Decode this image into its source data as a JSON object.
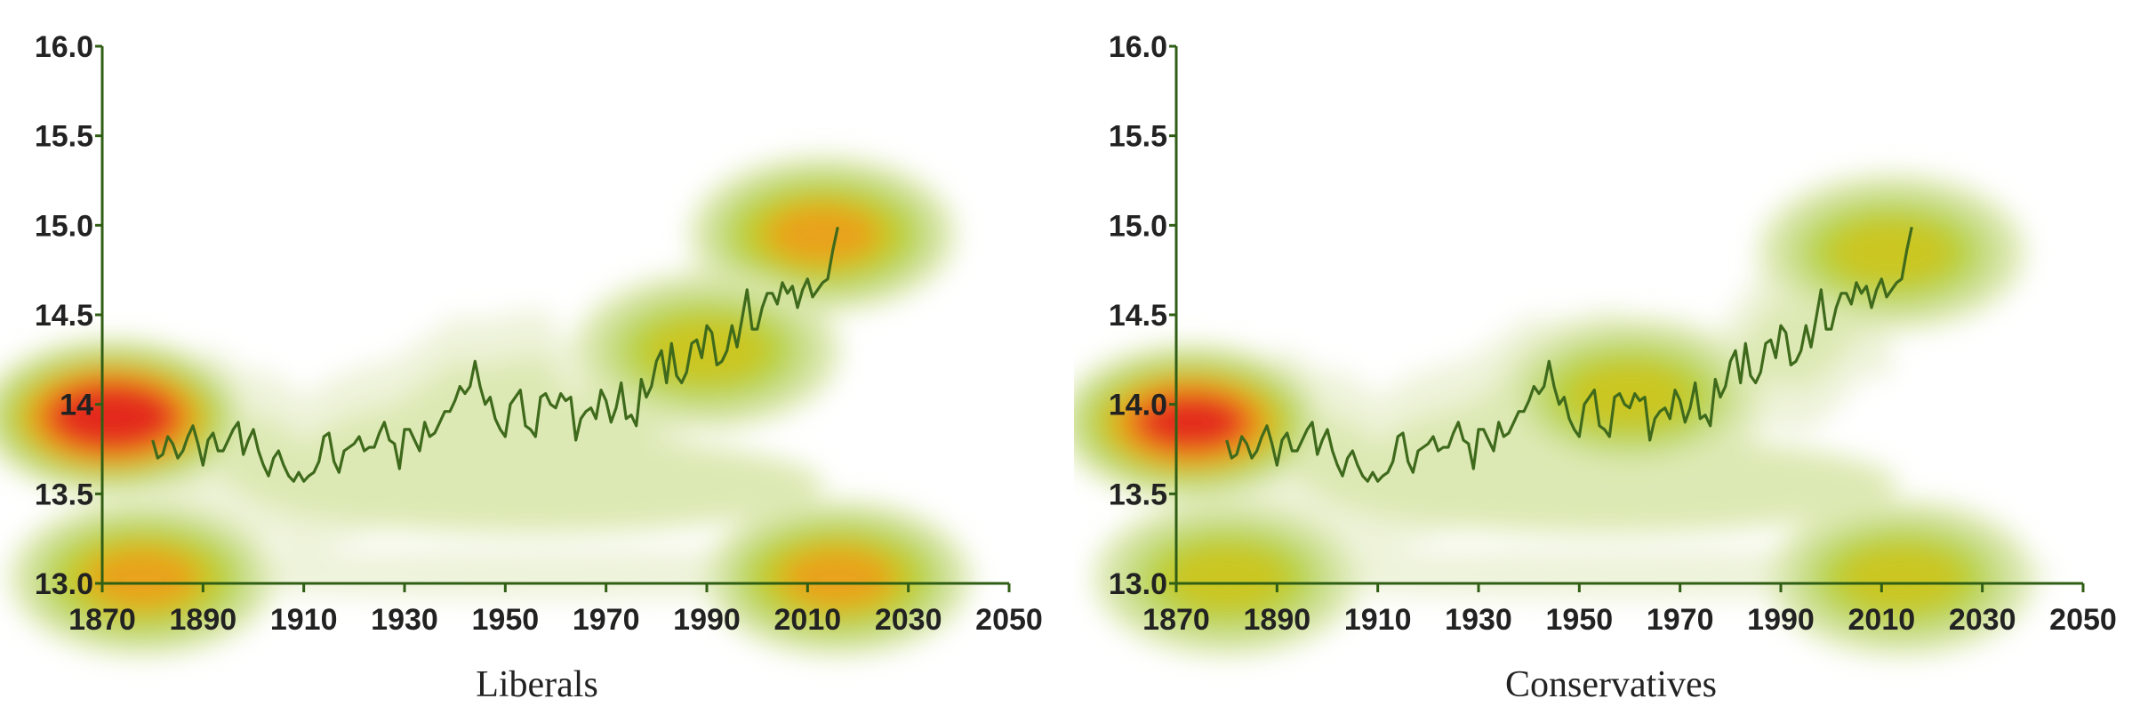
{
  "colors": {
    "axis": "#2f5e14",
    "line": "#3f6a1c",
    "density": [
      "#eef3da",
      "#dde9b4",
      "#c7dd85",
      "#b9d240",
      "#cbc621",
      "#e9a21d",
      "#ec6a1c",
      "#e32c1e"
    ]
  },
  "chart_data": [
    {
      "type": "line",
      "caption": "Liberals",
      "xlim": [
        1870,
        2050
      ],
      "ylim": [
        13.0,
        16.0
      ],
      "x_ticks": [
        "1870",
        "1890",
        "1910",
        "1930",
        "1950",
        "1970",
        "1990",
        "2010",
        "2030",
        "2050"
      ],
      "y_ticks": [
        "13.0",
        "13.5",
        "14",
        "14.5",
        "15.0",
        "15.5",
        "16.0"
      ],
      "grid": false,
      "legend": "none",
      "background": "density contours of predicted temperatures (green low, red high)",
      "density_hotspots": [
        {
          "x": 1872,
          "y": 13.93,
          "level": 7
        },
        {
          "x": 2013,
          "y": 14.95,
          "level": 4
        },
        {
          "x": 1878,
          "y": 13.03,
          "level": 4
        },
        {
          "x": 2016,
          "y": 13.03,
          "level": 4
        },
        {
          "x": 1990,
          "y": 14.3,
          "level": 3
        }
      ],
      "series": [
        {
          "x": [
            1880,
            1881,
            1882,
            1883,
            1884,
            1885,
            1886,
            1887,
            1888,
            1889,
            1890,
            1891,
            1892,
            1893,
            1894,
            1895,
            1896,
            1897,
            1898,
            1899,
            1900,
            1901,
            1902,
            1903,
            1904,
            1905,
            1906,
            1907,
            1908,
            1909,
            1910,
            1911,
            1912,
            1913,
            1914,
            1915,
            1916,
            1917,
            1918,
            1919,
            1920,
            1921,
            1922,
            1923,
            1924,
            1925,
            1926,
            1927,
            1928,
            1929,
            1930,
            1931,
            1932,
            1933,
            1934,
            1935,
            1936,
            1937,
            1938,
            1939,
            1940,
            1941,
            1942,
            1943,
            1944,
            1945,
            1946,
            1947,
            1948,
            1949,
            1950,
            1951,
            1952,
            1953,
            1954,
            1955,
            1956,
            1957,
            1958,
            1959,
            1960,
            1961,
            1962,
            1963,
            1964,
            1965,
            1966,
            1967,
            1968,
            1969,
            1970,
            1971,
            1972,
            1973,
            1974,
            1975,
            1976,
            1977,
            1978,
            1979,
            1980,
            1981,
            1982,
            1983,
            1984,
            1985,
            1986,
            1987,
            1988,
            1989,
            1990,
            1991,
            1992,
            1993,
            1994,
            1995,
            1996,
            1997,
            1998,
            1999,
            2000,
            2001,
            2002,
            2003,
            2004,
            2005,
            2006,
            2007,
            2008,
            2009,
            2010,
            2011,
            2012,
            2013,
            2014,
            2015,
            2016
          ],
          "y": [
            13.8,
            13.7,
            13.72,
            13.82,
            13.78,
            13.7,
            13.74,
            13.82,
            13.88,
            13.78,
            13.66,
            13.8,
            13.84,
            13.74,
            13.74,
            13.8,
            13.86,
            13.9,
            13.72,
            13.8,
            13.86,
            13.74,
            13.66,
            13.6,
            13.7,
            13.74,
            13.66,
            13.6,
            13.57,
            13.62,
            13.57,
            13.6,
            13.62,
            13.68,
            13.82,
            13.84,
            13.68,
            13.62,
            13.74,
            13.76,
            13.78,
            13.82,
            13.74,
            13.76,
            13.76,
            13.84,
            13.9,
            13.8,
            13.78,
            13.64,
            13.86,
            13.86,
            13.8,
            13.74,
            13.9,
            13.82,
            13.84,
            13.9,
            13.96,
            13.96,
            14.02,
            14.1,
            14.06,
            14.1,
            14.24,
            14.1,
            14.0,
            14.04,
            13.92,
            13.86,
            13.82,
            14.0,
            14.04,
            14.08,
            13.88,
            13.86,
            13.82,
            14.04,
            14.06,
            14.0,
            13.98,
            14.06,
            14.02,
            14.04,
            13.8,
            13.92,
            13.96,
            13.98,
            13.92,
            14.08,
            14.02,
            13.9,
            13.98,
            14.12,
            13.92,
            13.94,
            13.88,
            14.14,
            14.04,
            14.1,
            14.24,
            14.3,
            14.12,
            14.34,
            14.16,
            14.12,
            14.18,
            14.34,
            14.36,
            14.26,
            14.44,
            14.4,
            14.22,
            14.24,
            14.3,
            14.44,
            14.32,
            14.48,
            14.64,
            14.42,
            14.42,
            14.54,
            14.62,
            14.62,
            14.56,
            14.68,
            14.62,
            14.66,
            14.54,
            14.64,
            14.7,
            14.6,
            14.64,
            14.68,
            14.7,
            14.86,
            14.99
          ]
        }
      ]
    },
    {
      "type": "line",
      "caption": "Conservatives",
      "xlim": [
        1870,
        2050
      ],
      "ylim": [
        13.0,
        16.0
      ],
      "x_ticks": [
        "1870",
        "1890",
        "1910",
        "1930",
        "1950",
        "1970",
        "1990",
        "2010",
        "2030",
        "2050"
      ],
      "y_ticks": [
        "13.0",
        "13.5",
        "14.0",
        "14.5",
        "15.0",
        "15.5",
        "16.0"
      ],
      "grid": false,
      "legend": "none",
      "background": "density contours of predicted temperatures (green low, red high)",
      "density_hotspots": [
        {
          "x": 1873,
          "y": 13.9,
          "level": 6
        },
        {
          "x": 2012,
          "y": 14.85,
          "level": 3
        },
        {
          "x": 1880,
          "y": 13.03,
          "level": 3
        },
        {
          "x": 2014,
          "y": 13.03,
          "level": 3
        },
        {
          "x": 1960,
          "y": 14.05,
          "level": 3
        }
      ],
      "series": [
        {
          "x": [
            1880,
            1881,
            1882,
            1883,
            1884,
            1885,
            1886,
            1887,
            1888,
            1889,
            1890,
            1891,
            1892,
            1893,
            1894,
            1895,
            1896,
            1897,
            1898,
            1899,
            1900,
            1901,
            1902,
            1903,
            1904,
            1905,
            1906,
            1907,
            1908,
            1909,
            1910,
            1911,
            1912,
            1913,
            1914,
            1915,
            1916,
            1917,
            1918,
            1919,
            1920,
            1921,
            1922,
            1923,
            1924,
            1925,
            1926,
            1927,
            1928,
            1929,
            1930,
            1931,
            1932,
            1933,
            1934,
            1935,
            1936,
            1937,
            1938,
            1939,
            1940,
            1941,
            1942,
            1943,
            1944,
            1945,
            1946,
            1947,
            1948,
            1949,
            1950,
            1951,
            1952,
            1953,
            1954,
            1955,
            1956,
            1957,
            1958,
            1959,
            1960,
            1961,
            1962,
            1963,
            1964,
            1965,
            1966,
            1967,
            1968,
            1969,
            1970,
            1971,
            1972,
            1973,
            1974,
            1975,
            1976,
            1977,
            1978,
            1979,
            1980,
            1981,
            1982,
            1983,
            1984,
            1985,
            1986,
            1987,
            1988,
            1989,
            1990,
            1991,
            1992,
            1993,
            1994,
            1995,
            1996,
            1997,
            1998,
            1999,
            2000,
            2001,
            2002,
            2003,
            2004,
            2005,
            2006,
            2007,
            2008,
            2009,
            2010,
            2011,
            2012,
            2013,
            2014,
            2015,
            2016
          ],
          "y": [
            13.8,
            13.7,
            13.72,
            13.82,
            13.78,
            13.7,
            13.74,
            13.82,
            13.88,
            13.78,
            13.66,
            13.8,
            13.84,
            13.74,
            13.74,
            13.8,
            13.86,
            13.9,
            13.72,
            13.8,
            13.86,
            13.74,
            13.66,
            13.6,
            13.7,
            13.74,
            13.66,
            13.6,
            13.57,
            13.62,
            13.57,
            13.6,
            13.62,
            13.68,
            13.82,
            13.84,
            13.68,
            13.62,
            13.74,
            13.76,
            13.78,
            13.82,
            13.74,
            13.76,
            13.76,
            13.84,
            13.9,
            13.8,
            13.78,
            13.64,
            13.86,
            13.86,
            13.8,
            13.74,
            13.9,
            13.82,
            13.84,
            13.9,
            13.96,
            13.96,
            14.02,
            14.1,
            14.06,
            14.1,
            14.24,
            14.1,
            14.0,
            14.04,
            13.92,
            13.86,
            13.82,
            14.0,
            14.04,
            14.08,
            13.88,
            13.86,
            13.82,
            14.04,
            14.06,
            14.0,
            13.98,
            14.06,
            14.02,
            14.04,
            13.8,
            13.92,
            13.96,
            13.98,
            13.92,
            14.08,
            14.02,
            13.9,
            13.98,
            14.12,
            13.92,
            13.94,
            13.88,
            14.14,
            14.04,
            14.1,
            14.24,
            14.3,
            14.12,
            14.34,
            14.16,
            14.12,
            14.18,
            14.34,
            14.36,
            14.26,
            14.44,
            14.4,
            14.22,
            14.24,
            14.3,
            14.44,
            14.32,
            14.48,
            14.64,
            14.42,
            14.42,
            14.54,
            14.62,
            14.62,
            14.56,
            14.68,
            14.62,
            14.66,
            14.54,
            14.64,
            14.7,
            14.6,
            14.64,
            14.68,
            14.7,
            14.86,
            14.99
          ]
        }
      ]
    }
  ]
}
